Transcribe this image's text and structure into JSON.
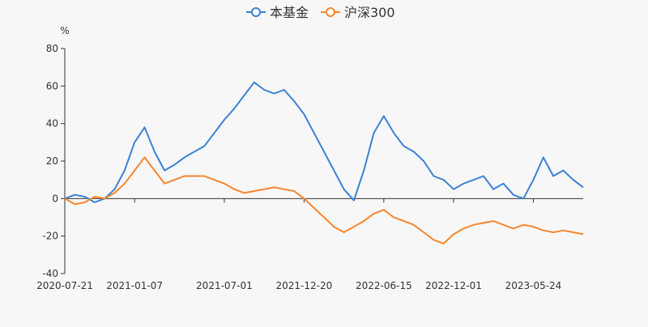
{
  "chart_data": {
    "type": "line",
    "title": "",
    "ylabel": "%",
    "xlabel": "",
    "ylim": [
      -40,
      80
    ],
    "yticks": [
      -40,
      -20,
      0,
      20,
      40,
      60,
      80
    ],
    "xticks": [
      "2020-07-21",
      "2021-01-07",
      "2021-07-01",
      "2021-12-20",
      "2022-06-15",
      "2022-12-01",
      "2023-05-24"
    ],
    "legend_position": "top-center",
    "x": [
      "2020-07-21",
      "2020-08-15",
      "2020-09-10",
      "2020-10-05",
      "2020-10-30",
      "2020-11-25",
      "2020-12-20",
      "2021-01-07",
      "2021-01-25",
      "2021-02-10",
      "2021-02-25",
      "2021-03-15",
      "2021-04-05",
      "2021-04-25",
      "2021-05-15",
      "2021-06-05",
      "2021-07-01",
      "2021-07-25",
      "2021-08-15",
      "2021-09-05",
      "2021-09-30",
      "2021-10-20",
      "2021-11-10",
      "2021-12-01",
      "2021-12-20",
      "2022-01-10",
      "2022-02-05",
      "2022-03-01",
      "2022-03-20",
      "2022-04-10",
      "2022-04-27",
      "2022-05-20",
      "2022-06-15",
      "2022-07-10",
      "2022-08-01",
      "2022-08-25",
      "2022-09-15",
      "2022-10-10",
      "2022-10-31",
      "2022-12-01",
      "2022-12-25",
      "2023-01-20",
      "2023-02-15",
      "2023-03-10",
      "2023-03-31",
      "2023-04-20",
      "2023-05-10",
      "2023-05-24",
      "2023-06-15",
      "2023-07-05",
      "2023-07-25",
      "2023-08-10",
      "2023-08-15"
    ],
    "series": [
      {
        "name": "本基金",
        "color": "#3b82d4",
        "values": [
          0,
          2,
          1,
          -2,
          0,
          5,
          15,
          30,
          38,
          25,
          15,
          18,
          22,
          25,
          28,
          35,
          42,
          48,
          55,
          62,
          58,
          56,
          58,
          52,
          45,
          35,
          25,
          15,
          5,
          -1,
          15,
          35,
          44,
          35,
          28,
          25,
          20,
          12,
          10,
          5,
          8,
          10,
          12,
          5,
          8,
          2,
          0,
          10,
          22,
          12,
          15,
          10,
          6
        ]
      },
      {
        "name": "沪深300",
        "color": "#f5862d",
        "values": [
          0,
          -3,
          -2,
          1,
          0,
          3,
          8,
          15,
          22,
          15,
          8,
          10,
          12,
          12,
          12,
          10,
          8,
          5,
          3,
          4,
          5,
          6,
          5,
          4,
          0,
          -5,
          -10,
          -15,
          -18,
          -15,
          -12,
          -8,
          -6,
          -10,
          -12,
          -14,
          -18,
          -22,
          -24,
          -19,
          -16,
          -14,
          -13,
          -12,
          -14,
          -16,
          -14,
          -15,
          -17,
          -18,
          -17,
          -18,
          -19
        ]
      }
    ]
  }
}
